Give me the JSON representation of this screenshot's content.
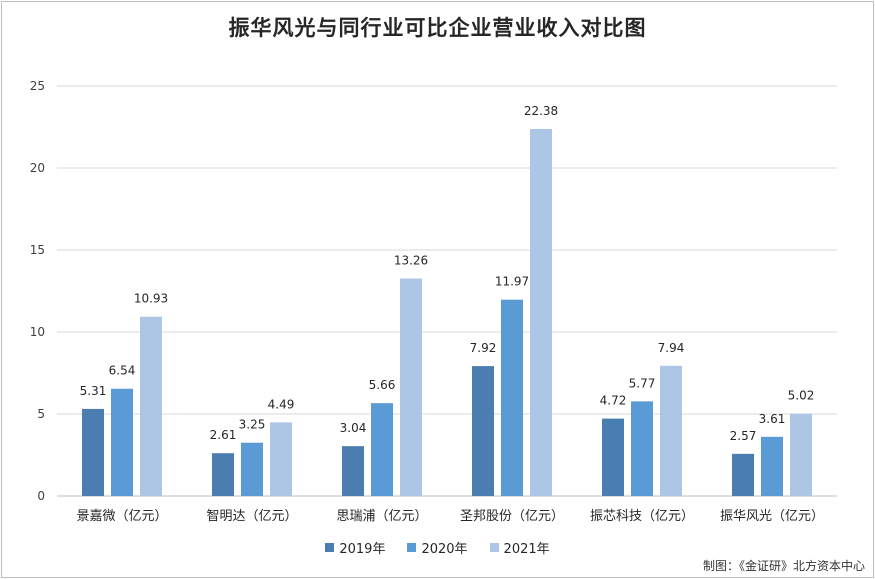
{
  "chart_data": {
    "type": "bar",
    "title": "振华风光与同行业可比企业营业收入对比图",
    "categories": [
      "景嘉微（亿元）",
      "智明达（亿元）",
      "思瑞浦（亿元）",
      "圣邦股份（亿元）",
      "振芯科技（亿元）",
      "振华风光（亿元）"
    ],
    "series": [
      {
        "name": "2019年",
        "color": "#4a7eb0",
        "values": [
          5.31,
          2.61,
          3.04,
          7.92,
          4.72,
          2.57
        ]
      },
      {
        "name": "2020年",
        "color": "#5b9bd5",
        "values": [
          6.54,
          3.25,
          5.66,
          11.97,
          5.77,
          3.61
        ]
      },
      {
        "name": "2021年",
        "color": "#adc6e6",
        "values": [
          10.93,
          4.49,
          13.26,
          22.38,
          7.94,
          5.02
        ]
      }
    ],
    "data_labels": [
      [
        "5.31",
        "2.61",
        "3.04",
        "7.92",
        "4.72",
        "2.57"
      ],
      [
        "6.54",
        "3.25",
        "5.66",
        "11.97",
        "5.77",
        "3.61"
      ],
      [
        "10.93",
        "4.49",
        "13.26",
        "22.38",
        "7.94",
        "5.02"
      ]
    ],
    "ylim": [
      0,
      25
    ],
    "yticks": [
      "0",
      "5",
      "10",
      "15",
      "20",
      "25"
    ],
    "ytick_values": [
      0,
      5,
      10,
      15,
      20,
      25
    ],
    "grid": true,
    "legend_position": "bottom"
  },
  "credit": "制图：《金证研》北方资本中心"
}
